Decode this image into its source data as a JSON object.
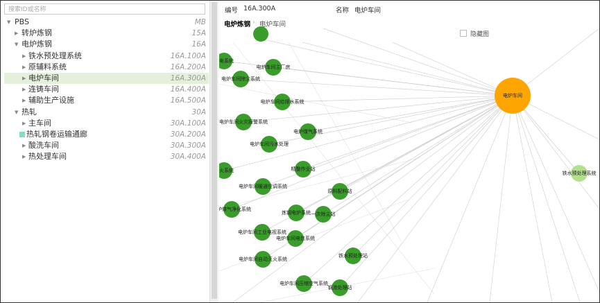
{
  "search": {
    "placeholder": "搜索ID或名称"
  },
  "tree": {
    "name": "PBS",
    "code": "MB",
    "children": [
      {
        "name": "转炉炼钢",
        "code": "15A"
      },
      {
        "name": "电炉炼钢",
        "code": "16A",
        "children": [
          {
            "name": "铁水预处理系统",
            "code": "16A.100A"
          },
          {
            "name": "原辅料系统",
            "code": "16A.200A"
          },
          {
            "name": "电炉车间",
            "code": "16A.300A",
            "selected": true
          },
          {
            "name": "连铸车间",
            "code": "16A.400A"
          },
          {
            "name": "辅助生产设施",
            "code": "16A.500A"
          }
        ]
      },
      {
        "name": "热轧",
        "code": "30A",
        "children": [
          {
            "name": "主车间",
            "code": "30A.100A"
          },
          {
            "name": "热轧钢卷运输通廊",
            "code": "30A.200A"
          },
          {
            "name": "酸洗车间",
            "code": "30A.300A"
          },
          {
            "name": "热处理车间",
            "code": "30A.400A"
          }
        ]
      }
    ]
  },
  "header": {
    "id_label": "编号",
    "id": "16A.300A",
    "name_label": "名称",
    "name": "电炉车间"
  },
  "breadcrumb": [
    "电炉炼钢",
    "电炉车间"
  ],
  "hide_graph": "隐藏图",
  "graph": {
    "center": "电炉车间",
    "side": "铁水预处理系统",
    "nodes": [
      "电炉车间主厂房",
      "电炉车间除尘系统",
      "配电系统",
      "电炉车间给排水系统",
      "电炉车间火灾报警系统",
      "电炉煤气系统",
      "电炉车间污水处理",
      "灭火系统",
      "精整作业站",
      "电炉车间暖通空调系统",
      "原料配料站",
      "电炉煤气净化系统",
      "炼钢电炉系统",
      "一次除尘站",
      "电炉车间工业电视系统",
      "电炉车间电信系统",
      "铁水预处理站",
      "电炉车间自动灭火系统",
      "电炉车间压缩空气系统",
      "钢渣处理站"
    ]
  }
}
